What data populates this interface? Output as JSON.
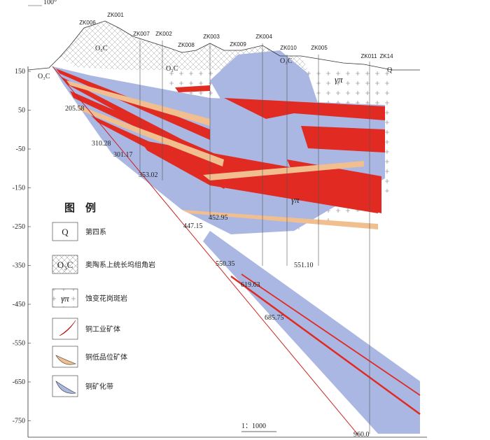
{
  "corner_label": "100°",
  "elevation_axis": {
    "ticks": [
      150,
      50,
      -50,
      -150,
      -250,
      -350,
      -450,
      -550,
      -650,
      -750
    ]
  },
  "drillholes": [
    "ZK006",
    "ZK001",
    "ZK007",
    "ZK002",
    "ZK008",
    "ZK003",
    "ZK009",
    "ZK004",
    "ZK010",
    "ZK005",
    "ZK011",
    "ZK14"
  ],
  "depths": [
    "205.58",
    "310.28",
    "301.17",
    "353.02",
    "447.15",
    "452.95",
    "550.35",
    "551.10",
    "619.63",
    "685.75",
    "960.0"
  ],
  "map_symbols": {
    "formation": "O₃C",
    "porphyry": "γπ",
    "quaternary": "Q"
  },
  "legend": {
    "title": "图　例",
    "items": [
      {
        "symbol": "Q",
        "label": "第四系"
      },
      {
        "symbol": "O₃C",
        "label": "奥陶系上统长坞组角岩"
      },
      {
        "symbol": "γπ",
        "label": "蚀变花岗斑岩"
      },
      {
        "label": "铜工业矿体"
      },
      {
        "label": "铜低品位矿体"
      },
      {
        "label": "铜矿化带"
      }
    ]
  },
  "scale": "1：1000"
}
